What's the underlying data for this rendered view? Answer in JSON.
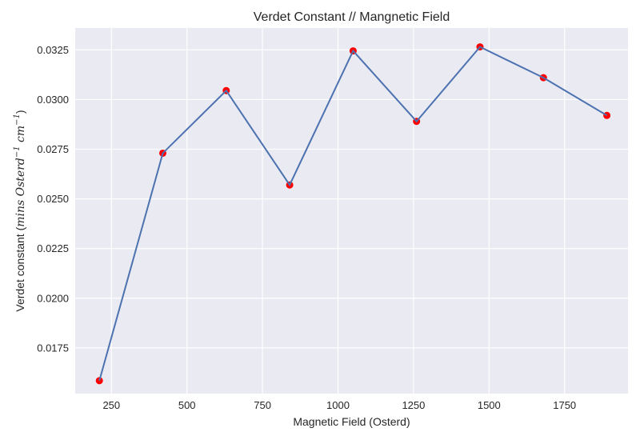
{
  "chart_data": {
    "type": "line",
    "title": "Verdet Constant // Mangnetic Field",
    "xlabel": "Magnetic Field (Osterd)",
    "ylabel": {
      "prefix": "Verdet constant (",
      "math": "mins Osterd",
      "sup1": "−1",
      "math2": " cm",
      "sup2": "−1",
      "suffix": ")"
    },
    "xlim": [
      130,
      1960
    ],
    "ylim": [
      0.0152,
      0.0336
    ],
    "xticks": [
      250,
      500,
      750,
      1000,
      1250,
      1500,
      1750
    ],
    "xtick_labels": [
      "250",
      "500",
      "750",
      "1000",
      "1250",
      "1500",
      "1750"
    ],
    "yticks": [
      0.0175,
      0.02,
      0.0225,
      0.025,
      0.0275,
      0.03,
      0.0325
    ],
    "ytick_labels": [
      "0.0175",
      "0.0200",
      "0.0225",
      "0.0250",
      "0.0275",
      "0.0300",
      "0.0325"
    ],
    "grid": true,
    "series": [
      {
        "x": [
          210,
          420,
          630,
          840,
          1050,
          1260,
          1470,
          1680,
          1890
        ],
        "values": [
          0.01585,
          0.0273,
          0.03045,
          0.0257,
          0.03245,
          0.0289,
          0.03265,
          0.0311,
          0.0292
        ],
        "line_color": "#4c72b0",
        "marker_color": "#ff0000"
      }
    ],
    "colors": {
      "plot_background": "#eaeaf2",
      "grid": "#ffffff"
    }
  }
}
